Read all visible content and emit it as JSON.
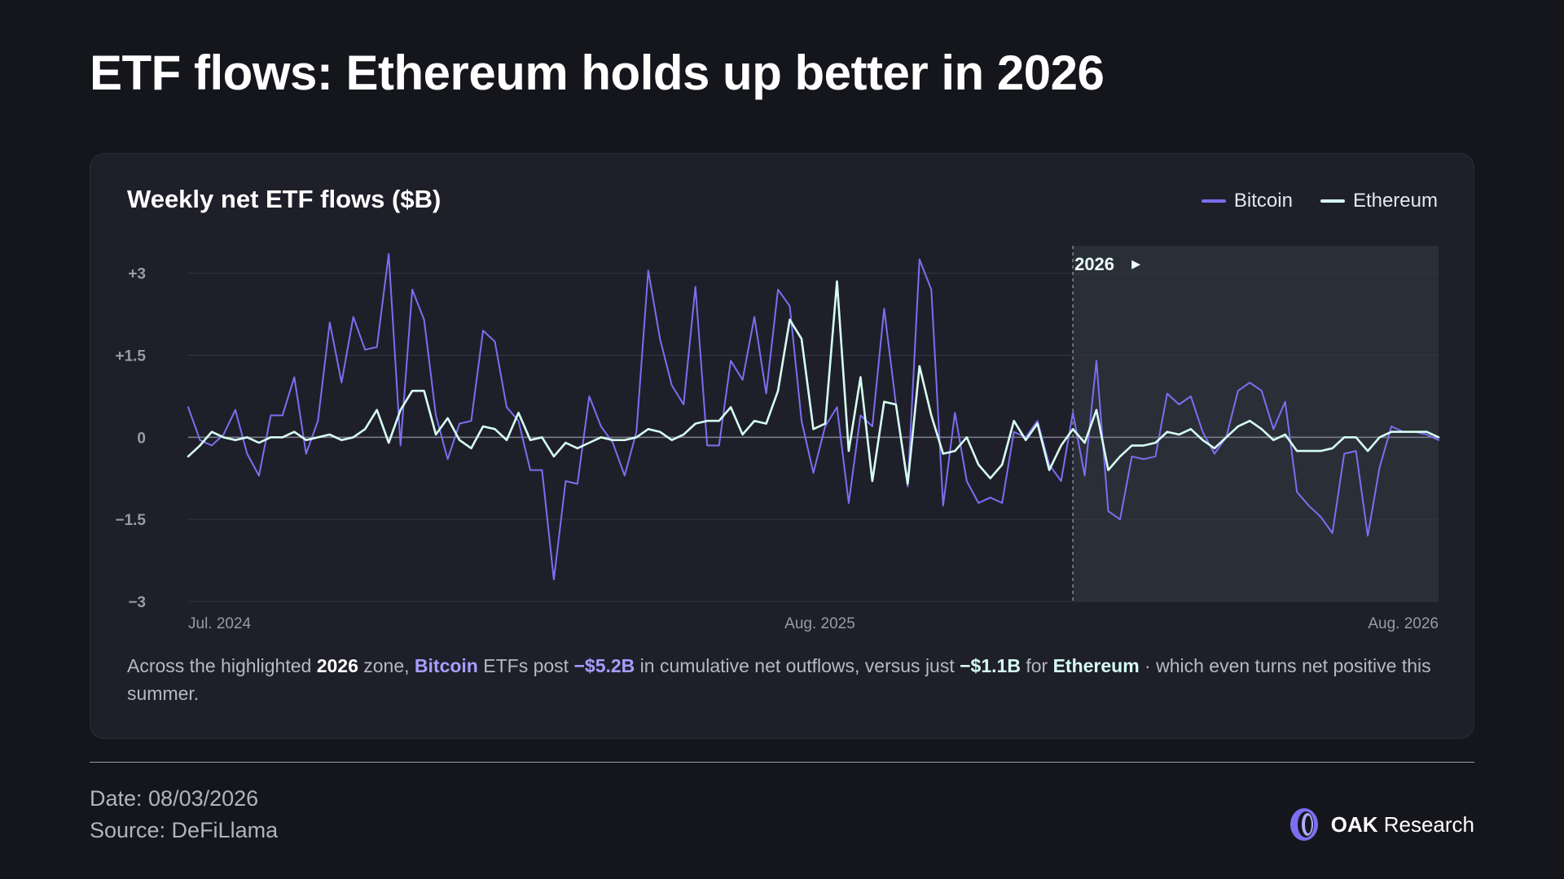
{
  "header": {
    "title": "ETF flows: Ethereum holds up better in 2026"
  },
  "card": {
    "title": "Weekly net ETF flows ($B)",
    "legend": [
      {
        "label": "Bitcoin",
        "color": "#7b6ff0"
      },
      {
        "label": "Ethereum",
        "color": "#d6fff2"
      }
    ],
    "zone_label": "2026",
    "zone_marker": "▸",
    "caption": {
      "p1": "Across the highlighted ",
      "b1": "2026",
      "p2": " zone, ",
      "b2": "Bitcoin",
      "p3": " ETFs post ",
      "b3": "−$5.2B",
      "p4": " in cumulative net outflows, versus just ",
      "b4": "−$1.1B",
      "p5": " for ",
      "b5": "Ethereum",
      "p6": " · which even turns net positive this summer."
    }
  },
  "chart_data": {
    "type": "line",
    "title": "Weekly net ETF flows ($B)",
    "ylim": [
      -3,
      3.5
    ],
    "y_ticks": [
      3,
      1.5,
      0,
      -1.5,
      -3
    ],
    "y_tick_labels": [
      "+3",
      "+1.5",
      "0",
      "−1.5",
      "−3"
    ],
    "x_tick_labels": [
      "Jul. 2024",
      "Aug. 2025",
      "Aug. 2026"
    ],
    "grid": true,
    "legend": "top-right",
    "highlight_zone_label": "2026",
    "highlight_zone_start_index": 75,
    "series": [
      {
        "name": "Bitcoin",
        "color": "#7b6ff0",
        "values": [
          0.55,
          -0.05,
          -0.15,
          0.05,
          0.5,
          -0.3,
          -0.7,
          0.4,
          0.4,
          1.1,
          -0.3,
          0.3,
          2.1,
          1.0,
          2.2,
          1.6,
          1.65,
          3.35,
          -0.15,
          2.7,
          2.15,
          0.4,
          -0.4,
          0.25,
          0.3,
          1.95,
          1.75,
          0.55,
          0.3,
          -0.6,
          -0.6,
          -2.6,
          -0.8,
          -0.85,
          0.75,
          0.2,
          -0.1,
          -0.7,
          0.1,
          3.05,
          1.8,
          0.95,
          0.6,
          2.75,
          -0.15,
          -0.15,
          1.4,
          1.05,
          2.2,
          0.8,
          2.7,
          2.4,
          0.3,
          -0.65,
          0.2,
          0.55,
          -1.2,
          0.4,
          0.2,
          2.35,
          0.6,
          -0.9,
          3.25,
          2.7,
          -1.25,
          0.45,
          -0.8,
          -1.2,
          -1.1,
          -1.2,
          0.1,
          0.0,
          0.3,
          -0.5,
          -0.8,
          0.45,
          -0.7,
          1.4,
          -1.35,
          -1.5,
          -0.35,
          -0.4,
          -0.35,
          0.8,
          0.6,
          0.75,
          0.1,
          -0.3,
          0.0,
          0.85,
          1.0,
          0.85,
          0.15,
          0.65,
          -1.0,
          -1.25,
          -1.45,
          -1.75,
          -0.3,
          -0.25,
          -1.8,
          -0.55,
          0.2,
          0.1,
          0.1,
          0.05,
          -0.05
        ]
      },
      {
        "name": "Ethereum",
        "color": "#d6fff2",
        "values": [
          -0.35,
          -0.15,
          0.1,
          0.0,
          -0.05,
          0.0,
          -0.1,
          0.0,
          0.0,
          0.1,
          -0.05,
          0.0,
          0.05,
          -0.05,
          0.0,
          0.15,
          0.5,
          -0.1,
          0.5,
          0.85,
          0.85,
          0.05,
          0.35,
          -0.05,
          -0.2,
          0.2,
          0.15,
          -0.05,
          0.45,
          -0.05,
          0.0,
          -0.35,
          -0.1,
          -0.2,
          -0.1,
          0.0,
          -0.05,
          -0.05,
          0.0,
          0.15,
          0.1,
          -0.05,
          0.05,
          0.25,
          0.3,
          0.3,
          0.55,
          0.05,
          0.3,
          0.25,
          0.85,
          2.15,
          1.8,
          0.15,
          0.25,
          2.85,
          -0.25,
          1.1,
          -0.8,
          0.65,
          0.6,
          -0.85,
          1.3,
          0.4,
          -0.3,
          -0.25,
          0.0,
          -0.5,
          -0.75,
          -0.5,
          0.3,
          -0.05,
          0.25,
          -0.6,
          -0.15,
          0.15,
          -0.1,
          0.5,
          -0.6,
          -0.35,
          -0.15,
          -0.15,
          -0.1,
          0.1,
          0.05,
          0.15,
          -0.05,
          -0.2,
          0.0,
          0.2,
          0.3,
          0.15,
          -0.05,
          0.05,
          -0.25,
          -0.25,
          -0.25,
          -0.2,
          0.0,
          0.0,
          -0.25,
          0.0,
          0.1,
          0.1,
          0.1,
          0.1,
          0.0
        ]
      }
    ]
  },
  "footer": {
    "date": "Date: 08/03/2026",
    "source": "Source: DeFiLlama",
    "brand_bold": "OAK",
    "brand_rest": " Research"
  }
}
